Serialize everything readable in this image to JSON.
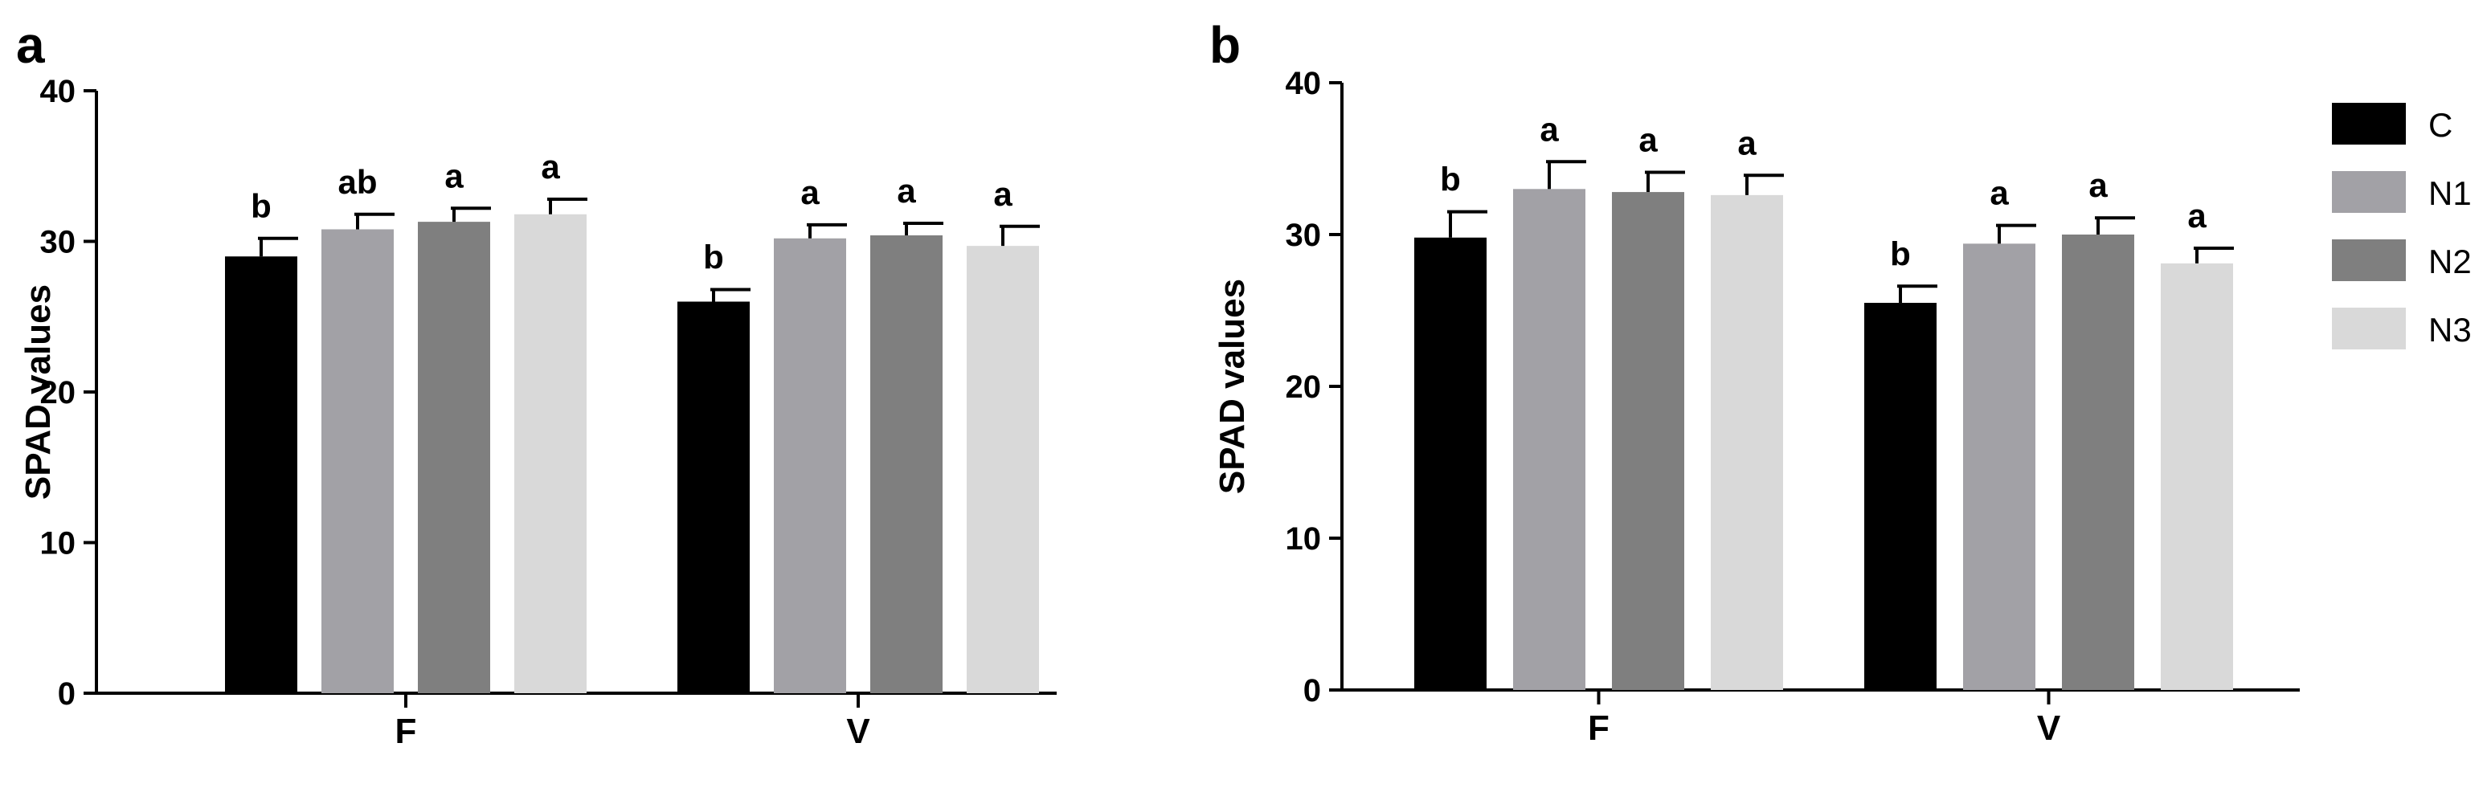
{
  "chart_data": [
    {
      "type": "bar",
      "panel_label": "a",
      "ylabel": "SPAD values",
      "xlabel": "",
      "ylim": [
        0,
        40
      ],
      "yticks": [
        "0",
        "10",
        "20",
        "30",
        "40"
      ],
      "categories": [
        "F",
        "V"
      ],
      "series": [
        {
          "name": "C",
          "color": "#000000",
          "values": [
            29.0,
            26.0
          ],
          "errors": [
            1.2,
            0.8
          ],
          "letters": [
            "b",
            "b"
          ]
        },
        {
          "name": "N1",
          "color": "#a2a1a6",
          "values": [
            30.8,
            30.2
          ],
          "errors": [
            1.0,
            0.9
          ],
          "letters": [
            "ab",
            "a"
          ]
        },
        {
          "name": "N2",
          "color": "#7f7f7f",
          "values": [
            31.3,
            30.4
          ],
          "errors": [
            0.9,
            0.8
          ],
          "letters": [
            "a",
            "a"
          ]
        },
        {
          "name": "N3",
          "color": "#d9d9d9",
          "values": [
            31.8,
            29.7
          ],
          "errors": [
            1.0,
            1.3
          ],
          "letters": [
            "a",
            "a"
          ]
        }
      ]
    },
    {
      "type": "bar",
      "panel_label": "b",
      "ylabel": "SPAD values",
      "xlabel": "",
      "ylim": [
        0,
        40
      ],
      "yticks": [
        "0",
        "10",
        "20",
        "30",
        "40"
      ],
      "categories": [
        "F",
        "V"
      ],
      "series": [
        {
          "name": "C",
          "color": "#000000",
          "values": [
            29.8,
            25.5
          ],
          "errors": [
            1.7,
            1.1
          ],
          "letters": [
            "b",
            "b"
          ]
        },
        {
          "name": "N1",
          "color": "#a2a1a6",
          "values": [
            33.0,
            29.4
          ],
          "errors": [
            1.8,
            1.2
          ],
          "letters": [
            "a",
            "a"
          ]
        },
        {
          "name": "N2",
          "color": "#7f7f7f",
          "values": [
            32.8,
            30.0
          ],
          "errors": [
            1.3,
            1.1
          ],
          "letters": [
            "a",
            "a"
          ]
        },
        {
          "name": "N3",
          "color": "#d9d9d9",
          "values": [
            32.6,
            28.1
          ],
          "errors": [
            1.3,
            1.0
          ],
          "letters": [
            "a",
            "a"
          ]
        }
      ]
    }
  ],
  "legend": {
    "position": "right",
    "items": [
      {
        "label": "C",
        "color": "#000000"
      },
      {
        "label": "N1",
        "color": "#a2a1a6"
      },
      {
        "label": "N2",
        "color": "#7f7f7f"
      },
      {
        "label": "N3",
        "color": "#d9d9d9"
      }
    ]
  }
}
